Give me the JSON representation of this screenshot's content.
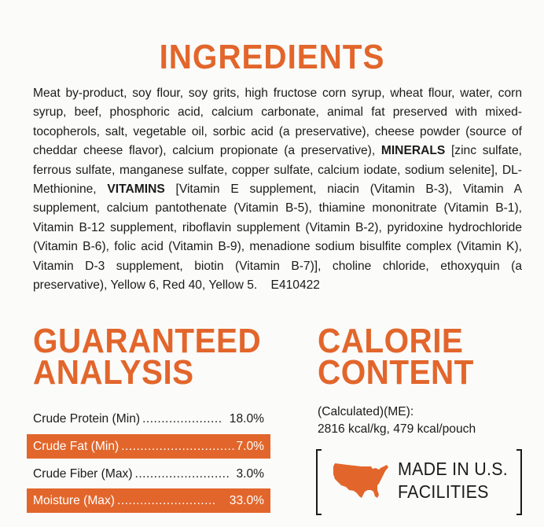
{
  "ingredients": {
    "title": "INGREDIENTS",
    "text_part1": "Meat by-product, soy flour, soy grits, high fructose corn syrup, wheat flour, water, corn syrup, beef, phosphoric acid, calcium carbonate, animal fat preserved with mixed-tocopherols, salt, vegetable oil, sorbic acid (a preservative), cheese powder (source of cheddar cheese flavor), calcium propionate (a preservative), ",
    "minerals_label": "MINERALS",
    "text_part2": " [zinc sulfate, ferrous sulfate, manganese sulfate, copper sulfate, calcium iodate, sodium selenite], DL-Methionine, ",
    "vitamins_label": "VITAMINS",
    "text_part3": " [Vitamin E supplement, niacin (Vitamin B-3), Vitamin A supplement, calcium pantothenate (Vitamin B-5), thiamine mononitrate (Vitamin B-1), Vitamin B-12 supplement, riboflavin supplement (Vitamin B-2), pyridoxine hydrochloride (Vitamin B-6), folic acid (Vitamin B-9), menadione sodium bisulfite complex (Vitamin K), Vitamin D-3 supplement, biotin (Vitamin B-7)], choline chloride, ethoxyquin (a preservative), Yellow 6, Red 40, Yellow 5.",
    "code": "E410422"
  },
  "guaranteed_analysis": {
    "title_line1": "GUARANTEED",
    "title_line2": "ANALYSIS",
    "rows": [
      {
        "label": "Crude Protein (Min)",
        "dots": ".....................",
        "value": "18.0%"
      },
      {
        "label": "Crude Fat (Min)",
        "dots": "..............................",
        "value": "7.0%"
      },
      {
        "label": "Crude Fiber (Max)",
        "dots": ".........................",
        "value": "3.0%"
      },
      {
        "label": "Moisture (Max)",
        "dots": "..........................",
        "value": "33.0%"
      }
    ]
  },
  "calorie_content": {
    "title_line1": "CALORIE",
    "title_line2": "CONTENT",
    "line1": "(Calculated)(ME):",
    "line2": "2816 kcal/kg, 479 kcal/pouch"
  },
  "badge": {
    "icon": "usa-map-icon",
    "line1": "MADE IN U.S.",
    "line2": "FACILITIES"
  },
  "colors": {
    "accent": "#e2662b",
    "text": "#1b1b1b",
    "background": "#fbfbfa"
  }
}
